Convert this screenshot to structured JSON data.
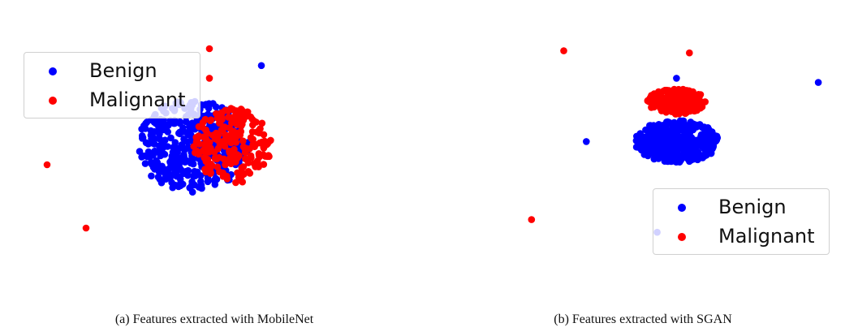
{
  "chart_data": [
    {
      "type": "scatter",
      "caption": "(a) Features extracted with MobileNet",
      "legend_position": "upper-left",
      "grid": false,
      "axes_visible": false,
      "xlim": [
        0,
        1
      ],
      "ylim": [
        0,
        1
      ],
      "series": [
        {
          "name": "Benign",
          "color": "#0000ff",
          "cluster": {
            "cx": 0.52,
            "cy": 0.54,
            "sx": 0.17,
            "sy": 0.22,
            "count": 420,
            "seed": 11
          },
          "outliers": [
            [
              0.73,
              0.92
            ]
          ]
        },
        {
          "name": "Malignant",
          "color": "#ff0000",
          "cluster": {
            "cx": 0.64,
            "cy": 0.54,
            "sx": 0.12,
            "sy": 0.18,
            "count": 210,
            "seed": 23
          },
          "outliers": [
            [
              0.07,
              0.45
            ],
            [
              0.19,
              0.15
            ],
            [
              0.57,
              1.0
            ],
            [
              0.57,
              0.86
            ]
          ]
        }
      ]
    },
    {
      "type": "scatter",
      "caption": "(b) Features extracted with SGAN",
      "legend_position": "lower-right",
      "grid": false,
      "axes_visible": false,
      "xlim": [
        0,
        1
      ],
      "ylim": [
        0,
        1
      ],
      "series": [
        {
          "name": "Benign",
          "color": "#0000ff",
          "cluster": {
            "cx": 0.53,
            "cy": 0.56,
            "sx": 0.13,
            "sy": 0.1,
            "count": 380,
            "seed": 37
          },
          "outliers": [
            [
              0.25,
              0.56
            ],
            [
              0.53,
              0.86
            ],
            [
              0.97,
              0.84
            ],
            [
              0.47,
              0.13
            ]
          ]
        },
        {
          "name": "Malignant",
          "color": "#ff0000",
          "cluster": {
            "cx": 0.53,
            "cy": 0.75,
            "sx": 0.09,
            "sy": 0.06,
            "count": 210,
            "seed": 53
          },
          "outliers": [
            [
              0.18,
              0.99
            ],
            [
              0.57,
              0.98
            ],
            [
              0.08,
              0.19
            ]
          ]
        }
      ]
    }
  ]
}
